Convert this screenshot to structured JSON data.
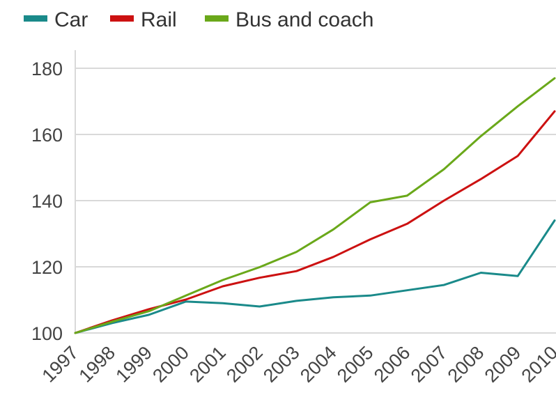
{
  "chart_data": {
    "type": "line",
    "title": "",
    "xlabel": "",
    "ylabel": "",
    "categories": [
      "1997",
      "1998",
      "1999",
      "2000",
      "2001",
      "2002",
      "2003",
      "2004",
      "2005",
      "2006",
      "2007",
      "2008",
      "2009",
      "2010"
    ],
    "yticks": [
      "100",
      "120",
      "140",
      "160",
      "180"
    ],
    "ylim": [
      100,
      180
    ],
    "grid": true,
    "legend_position": "top-left",
    "series": [
      {
        "name": "Car",
        "color": "#1a8a8a",
        "values": [
          100,
          103,
          105.5,
          109.5,
          109,
          108,
          109.7,
          110.8,
          111.3,
          112.9,
          114.5,
          118.2,
          117.2,
          134
        ]
      },
      {
        "name": "Rail",
        "color": "#cc1111",
        "values": [
          100,
          103.8,
          107.2,
          110.1,
          114.1,
          116.7,
          118.7,
          123,
          128.3,
          133,
          140,
          146.5,
          153.5,
          167
        ]
      },
      {
        "name": "Bus and coach",
        "color": "#6aa81a",
        "values": [
          100,
          103.4,
          106.6,
          111.3,
          116,
          119.9,
          124.5,
          131.3,
          139.5,
          141.5,
          149.5,
          159.5,
          168.5,
          177
        ]
      }
    ]
  }
}
